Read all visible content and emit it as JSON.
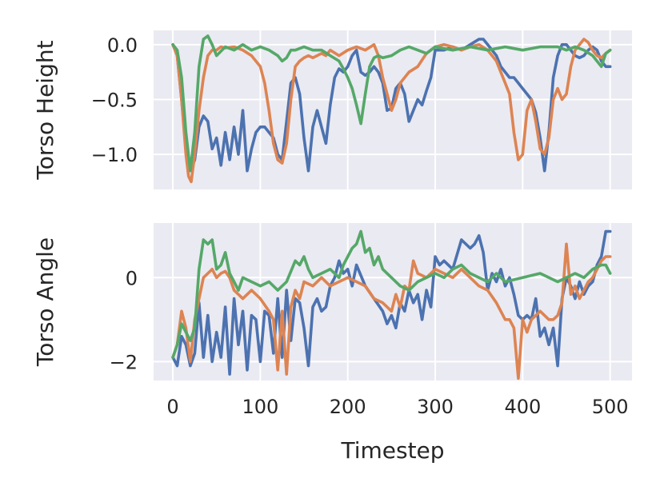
{
  "chart_data": [
    {
      "type": "line",
      "ylabel": "Torso Height",
      "xlabel": "",
      "xlim": [
        -22,
        525
      ],
      "ylim": [
        -1.32,
        0.13
      ],
      "xticks": [
        0,
        100,
        200,
        300,
        400,
        500
      ],
      "yticks": [
        0.0,
        -0.5,
        -1.0
      ],
      "ytick_labels": [
        "0.0",
        "−0.5",
        "−1.0"
      ],
      "grid": true,
      "series": [
        {
          "color": "#4c72b0",
          "x": [
            0,
            5,
            10,
            15,
            20,
            25,
            30,
            35,
            40,
            45,
            50,
            55,
            60,
            65,
            70,
            75,
            80,
            85,
            90,
            95,
            100,
            105,
            110,
            115,
            120,
            125,
            130,
            135,
            140,
            145,
            150,
            155,
            160,
            165,
            170,
            175,
            180,
            185,
            190,
            195,
            200,
            205,
            210,
            215,
            220,
            225,
            230,
            235,
            240,
            245,
            250,
            255,
            260,
            265,
            270,
            275,
            280,
            285,
            290,
            295,
            300,
            310,
            320,
            330,
            340,
            350,
            355,
            360,
            365,
            370,
            375,
            380,
            385,
            390,
            395,
            400,
            405,
            410,
            415,
            420,
            425,
            430,
            435,
            440,
            445,
            450,
            455,
            460,
            465,
            470,
            475,
            480,
            485,
            490,
            495,
            500
          ],
          "y": [
            0.0,
            -0.1,
            -0.5,
            -0.95,
            -1.15,
            -1.05,
            -0.75,
            -0.65,
            -0.7,
            -0.95,
            -0.85,
            -1.1,
            -0.8,
            -1.05,
            -0.75,
            -1.0,
            -0.6,
            -1.15,
            -0.95,
            -0.8,
            -0.75,
            -0.75,
            -0.8,
            -0.85,
            -1.0,
            -1.05,
            -0.7,
            -0.35,
            -0.3,
            -0.45,
            -0.85,
            -1.15,
            -0.75,
            -0.6,
            -0.75,
            -0.9,
            -0.55,
            -0.3,
            -0.22,
            -0.25,
            -0.2,
            -0.1,
            -0.05,
            -0.25,
            -0.28,
            -0.25,
            -0.2,
            -0.25,
            -0.35,
            -0.6,
            -0.58,
            -0.4,
            -0.35,
            -0.45,
            -0.7,
            -0.6,
            -0.5,
            -0.55,
            -0.42,
            -0.3,
            -0.05,
            -0.05,
            -0.02,
            -0.05,
            0.0,
            0.05,
            0.05,
            0.0,
            -0.05,
            -0.1,
            -0.2,
            -0.25,
            -0.3,
            -0.3,
            -0.35,
            -0.4,
            -0.45,
            -0.5,
            -0.62,
            -0.85,
            -1.15,
            -0.8,
            -0.3,
            -0.1,
            0.0,
            0.0,
            -0.05,
            -0.1,
            -0.12,
            -0.1,
            -0.05,
            -0.02,
            -0.05,
            -0.15,
            -0.2,
            -0.2
          ]
        },
        {
          "color": "#dd8452",
          "x": [
            0,
            5,
            10,
            15,
            18,
            21,
            25,
            30,
            35,
            40,
            45,
            50,
            55,
            60,
            70,
            80,
            90,
            100,
            105,
            110,
            115,
            120,
            125,
            130,
            135,
            140,
            145,
            150,
            155,
            160,
            165,
            170,
            175,
            180,
            190,
            200,
            210,
            220,
            230,
            235,
            240,
            245,
            250,
            255,
            260,
            265,
            270,
            280,
            290,
            300,
            310,
            320,
            330,
            340,
            350,
            360,
            370,
            375,
            380,
            385,
            390,
            395,
            400,
            405,
            410,
            415,
            420,
            425,
            430,
            435,
            440,
            445,
            450,
            455,
            460,
            465,
            470,
            475,
            480,
            485,
            490,
            495,
            500
          ],
          "y": [
            0.0,
            -0.1,
            -0.5,
            -1.0,
            -1.2,
            -1.25,
            -1.0,
            -0.6,
            -0.3,
            -0.1,
            -0.05,
            -0.05,
            -0.02,
            -0.03,
            -0.02,
            -0.05,
            -0.1,
            -0.2,
            -0.35,
            -0.6,
            -0.9,
            -1.05,
            -1.08,
            -0.9,
            -0.5,
            -0.2,
            -0.15,
            -0.12,
            -0.1,
            -0.12,
            -0.1,
            -0.08,
            -0.1,
            -0.05,
            -0.1,
            -0.05,
            -0.02,
            -0.05,
            0.0,
            -0.1,
            -0.3,
            -0.45,
            -0.6,
            -0.5,
            -0.35,
            -0.3,
            -0.25,
            -0.2,
            -0.08,
            -0.02,
            0.0,
            -0.02,
            -0.05,
            -0.02,
            0.0,
            -0.05,
            -0.15,
            -0.25,
            -0.35,
            -0.45,
            -0.8,
            -1.05,
            -1.0,
            -0.6,
            -0.5,
            -0.7,
            -0.95,
            -1.0,
            -0.85,
            -0.5,
            -0.4,
            -0.5,
            -0.45,
            -0.2,
            -0.05,
            0.0,
            0.05,
            0.02,
            -0.05,
            -0.1,
            -0.12,
            -0.08,
            -0.05
          ]
        },
        {
          "color": "#55a868",
          "x": [
            0,
            5,
            10,
            15,
            20,
            25,
            30,
            35,
            40,
            45,
            50,
            60,
            70,
            80,
            90,
            100,
            110,
            120,
            125,
            130,
            135,
            140,
            150,
            160,
            170,
            180,
            190,
            195,
            200,
            205,
            210,
            215,
            220,
            225,
            230,
            235,
            240,
            250,
            260,
            270,
            280,
            290,
            300,
            320,
            340,
            360,
            380,
            400,
            420,
            440,
            450,
            460,
            470,
            480,
            490,
            495,
            500
          ],
          "y": [
            0.0,
            -0.05,
            -0.3,
            -0.8,
            -1.15,
            -0.8,
            -0.2,
            0.05,
            0.08,
            0.0,
            -0.1,
            -0.02,
            -0.05,
            0.0,
            -0.05,
            -0.02,
            -0.05,
            -0.1,
            -0.15,
            -0.12,
            -0.05,
            -0.05,
            -0.02,
            -0.05,
            -0.05,
            -0.1,
            -0.15,
            -0.22,
            -0.3,
            -0.4,
            -0.55,
            -0.72,
            -0.45,
            -0.2,
            -0.12,
            -0.1,
            -0.12,
            -0.1,
            -0.05,
            -0.02,
            -0.05,
            -0.08,
            -0.02,
            -0.05,
            -0.02,
            -0.05,
            -0.02,
            -0.05,
            -0.02,
            -0.02,
            -0.05,
            -0.02,
            -0.05,
            -0.1,
            -0.2,
            -0.08,
            -0.05
          ]
        }
      ]
    },
    {
      "type": "line",
      "xlabel": "Timestep",
      "ylabel": "Torso Angle",
      "xlim": [
        -22,
        525
      ],
      "ylim": [
        -2.45,
        1.3
      ],
      "xticks": [
        0,
        100,
        200,
        300,
        400,
        500
      ],
      "xtick_labels": [
        "0",
        "100",
        "200",
        "300",
        "400",
        "500"
      ],
      "yticks": [
        0,
        -2
      ],
      "ytick_labels": [
        "0",
        "−2"
      ],
      "grid": true,
      "series": [
        {
          "color": "#4c72b0",
          "x": [
            0,
            5,
            10,
            15,
            20,
            25,
            30,
            35,
            40,
            45,
            50,
            55,
            60,
            65,
            70,
            75,
            80,
            85,
            90,
            95,
            100,
            105,
            110,
            115,
            120,
            125,
            130,
            135,
            140,
            145,
            150,
            155,
            160,
            165,
            170,
            175,
            180,
            185,
            190,
            195,
            200,
            205,
            210,
            220,
            230,
            240,
            245,
            250,
            255,
            260,
            265,
            270,
            275,
            280,
            285,
            290,
            295,
            300,
            305,
            310,
            320,
            330,
            340,
            345,
            350,
            355,
            360,
            365,
            370,
            375,
            380,
            385,
            390,
            395,
            400,
            405,
            410,
            415,
            420,
            425,
            430,
            435,
            440,
            445,
            450,
            455,
            460,
            465,
            470,
            475,
            480,
            485,
            490,
            495,
            500
          ],
          "y": [
            -1.9,
            -2.1,
            -1.4,
            -1.6,
            -2.1,
            -1.8,
            -0.6,
            -1.9,
            -0.9,
            -2.0,
            -1.3,
            -1.9,
            -0.7,
            -2.3,
            -0.5,
            -1.6,
            -0.8,
            -2.2,
            -0.9,
            -1.0,
            -2.0,
            -0.8,
            -0.9,
            -1.8,
            -0.5,
            -1.9,
            -0.3,
            -1.5,
            -0.5,
            -0.6,
            -1.2,
            -2.1,
            -0.7,
            -0.5,
            -0.8,
            -0.7,
            -0.2,
            0.0,
            0.4,
            0.1,
            0.2,
            -0.2,
            0.3,
            -0.2,
            -0.5,
            -0.8,
            -1.1,
            -0.9,
            -1.2,
            -0.6,
            -0.8,
            -0.3,
            -0.6,
            -0.4,
            -1.0,
            -0.3,
            -0.7,
            0.5,
            0.3,
            0.4,
            0.2,
            0.9,
            0.7,
            0.8,
            1.0,
            0.6,
            -0.3,
            0.1,
            -0.1,
            0.2,
            -0.2,
            0.0,
            -0.4,
            -0.9,
            -1.0,
            -0.9,
            -1.0,
            -0.5,
            -1.4,
            -1.2,
            -1.6,
            -1.2,
            -2.1,
            -0.5,
            0.0,
            -0.2,
            -0.5,
            -0.1,
            -0.4,
            -0.2,
            -0.1,
            0.3,
            0.5,
            1.1,
            1.1
          ]
        },
        {
          "color": "#dd8452",
          "x": [
            0,
            5,
            10,
            15,
            20,
            25,
            30,
            35,
            40,
            45,
            50,
            55,
            60,
            65,
            70,
            80,
            90,
            100,
            110,
            115,
            120,
            125,
            130,
            135,
            140,
            145,
            150,
            160,
            170,
            180,
            190,
            200,
            210,
            220,
            230,
            240,
            250,
            255,
            260,
            265,
            270,
            275,
            280,
            290,
            300,
            310,
            320,
            330,
            340,
            350,
            360,
            370,
            380,
            385,
            390,
            395,
            400,
            405,
            410,
            420,
            430,
            435,
            440,
            445,
            450,
            455,
            460,
            465,
            470,
            475,
            480,
            485,
            490,
            495,
            500
          ],
          "y": [
            -1.9,
            -1.6,
            -0.8,
            -1.2,
            -2.0,
            -1.0,
            -0.5,
            0.0,
            0.1,
            0.2,
            0.0,
            0.1,
            0.15,
            0.0,
            -0.3,
            -0.5,
            -0.3,
            -0.5,
            -0.8,
            -1.0,
            -2.2,
            -0.8,
            -2.3,
            -0.7,
            -0.3,
            -0.5,
            -0.1,
            -0.2,
            0.0,
            -0.2,
            -0.1,
            0.0,
            -0.1,
            -0.2,
            -0.5,
            -0.6,
            -0.8,
            -0.4,
            -0.7,
            -0.2,
            -0.3,
            0.4,
            0.1,
            0.0,
            0.2,
            0.1,
            0.0,
            0.2,
            0.0,
            -0.2,
            -0.3,
            -0.6,
            -1.0,
            -1.0,
            -1.2,
            -2.4,
            -1.0,
            -1.3,
            -1.0,
            -0.8,
            -1.0,
            -1.0,
            -0.9,
            -0.6,
            0.8,
            -0.4,
            -0.2,
            -0.5,
            -0.3,
            -0.1,
            0.0,
            0.2,
            0.4,
            0.5,
            0.5
          ]
        },
        {
          "color": "#55a868",
          "x": [
            0,
            5,
            10,
            15,
            20,
            25,
            30,
            35,
            40,
            45,
            50,
            55,
            60,
            65,
            70,
            75,
            80,
            90,
            100,
            110,
            120,
            130,
            140,
            145,
            150,
            155,
            160,
            170,
            180,
            190,
            195,
            200,
            205,
            210,
            215,
            220,
            225,
            230,
            235,
            240,
            250,
            260,
            270,
            280,
            290,
            300,
            310,
            320,
            330,
            340,
            350,
            360,
            370,
            380,
            400,
            420,
            440,
            450,
            460,
            470,
            480,
            490,
            495,
            500
          ],
          "y": [
            -1.9,
            -1.6,
            -1.1,
            -1.3,
            -1.5,
            -1.2,
            0.2,
            0.9,
            0.8,
            0.9,
            0.2,
            0.3,
            0.6,
            0.1,
            -0.1,
            -0.3,
            0.0,
            -0.1,
            -0.2,
            -0.1,
            -0.3,
            -0.1,
            0.4,
            0.3,
            0.5,
            0.2,
            0.0,
            0.1,
            0.2,
            0.0,
            0.3,
            0.5,
            0.7,
            0.8,
            1.1,
            0.6,
            0.7,
            0.3,
            0.5,
            0.2,
            0.0,
            -0.2,
            -0.3,
            -0.1,
            0.0,
            0.1,
            0.0,
            0.2,
            0.3,
            0.1,
            0.0,
            -0.1,
            0.1,
            -0.1,
            0.0,
            0.1,
            -0.1,
            0.0,
            0.1,
            0.0,
            0.2,
            0.3,
            0.3,
            0.1
          ]
        }
      ]
    }
  ]
}
